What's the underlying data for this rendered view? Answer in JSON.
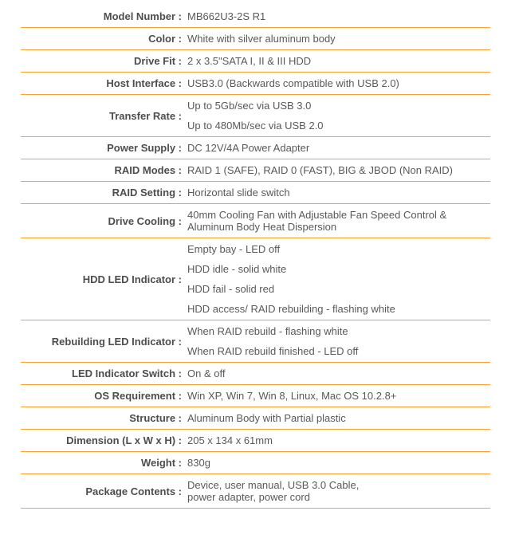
{
  "theme": {
    "background_color": "#ffffff",
    "divider_color": "#f7a233",
    "label_color": "#4c4d4f",
    "value_color": "#58595b"
  },
  "spec_table": {
    "rows": [
      {
        "label": "Model Number :",
        "lines": [
          "MB662U3-2S R1"
        ],
        "spacing": "single"
      },
      {
        "label": "Color :",
        "lines": [
          "White with silver aluminum body"
        ],
        "spacing": "single"
      },
      {
        "label": "Drive Fit :",
        "lines": [
          "2 x 3.5\"SATA I, II & III HDD"
        ],
        "spacing": "single"
      },
      {
        "label": "Host Interface :",
        "lines": [
          "USB3.0 (Backwards compatible with USB 2.0)"
        ],
        "spacing": "single"
      },
      {
        "label": "Transfer Rate :",
        "lines": [
          "Up to 5Gb/sec via USB 3.0",
          "Up to 480Mb/sec via USB 2.0"
        ],
        "spacing": "paragraph"
      },
      {
        "label": "Power Supply :",
        "lines": [
          "DC 12V/4A Power Adapter"
        ],
        "spacing": "single"
      },
      {
        "label": "RAID Modes :",
        "lines": [
          "RAID 1 (SAFE), RAID 0 (FAST), BIG & JBOD (Non RAID)"
        ],
        "spacing": "single"
      },
      {
        "label": "RAID Setting :",
        "lines": [
          "Horizontal slide switch"
        ],
        "spacing": "single"
      },
      {
        "label": "Drive Cooling :",
        "lines": [
          "40mm Cooling Fan with Adjustable Fan Speed Control &",
          "Aluminum Body Heat Dispersion"
        ],
        "spacing": "tight"
      },
      {
        "label": "HDD LED Indicator :",
        "lines": [
          "Empty bay - LED off",
          "HDD idle - solid white",
          "HDD fail - solid red",
          "HDD access/ RAID rebuilding - flashing white"
        ],
        "spacing": "paragraph"
      },
      {
        "label": "Rebuilding LED Indicator :",
        "lines": [
          "When RAID rebuild - flashing white",
          "When RAID rebuild finished - LED off"
        ],
        "spacing": "paragraph"
      },
      {
        "label": "LED Indicator Switch :",
        "lines": [
          "On & off"
        ],
        "spacing": "single"
      },
      {
        "label": "OS Requirement :",
        "lines": [
          "Win XP, Win 7, Win 8, Linux, Mac OS 10.2.8+"
        ],
        "spacing": "single"
      },
      {
        "label": "Structure :",
        "lines": [
          "Aluminum Body with Partial plastic"
        ],
        "spacing": "single"
      },
      {
        "label": "Dimension (L x W x H) :",
        "lines": [
          "205 x 134 x 61mm"
        ],
        "spacing": "single"
      },
      {
        "label": "Weight :",
        "lines": [
          "830g"
        ],
        "spacing": "single"
      },
      {
        "label": "Package Contents :",
        "lines": [
          "Device, user manual, USB 3.0 Cable,",
          "power adapter, power cord"
        ],
        "spacing": "tight"
      }
    ]
  }
}
